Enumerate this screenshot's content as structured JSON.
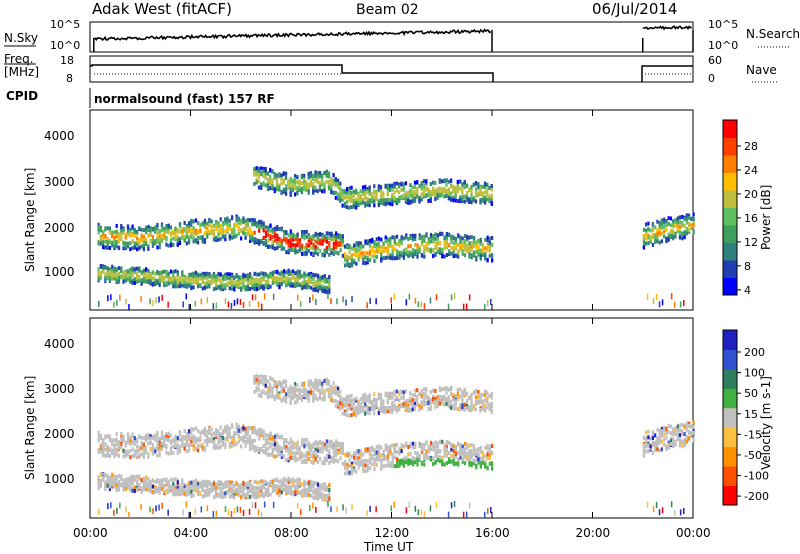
{
  "header": {
    "site_title": "Adak West (fitACF)",
    "beam": "Beam 02",
    "date": "06/Jul/2014"
  },
  "noise_panel": {
    "left_label": "N.Sky",
    "right_label": "N.Search",
    "left_ticks": [
      "10^5",
      "10^0"
    ],
    "right_ticks": [
      "10^5",
      "10^0"
    ]
  },
  "freq_panel": {
    "left_label_1": "Freq.",
    "left_label_2": "[MHz]",
    "right_label": "Nave",
    "left_ticks": [
      "18",
      "8"
    ],
    "right_ticks": [
      "60",
      "0"
    ]
  },
  "cpid": {
    "label": "CPID",
    "program": "normalsound (fast) 157 RF"
  },
  "power_panel": {
    "ylabel": "Slant Range [km]",
    "yticks": [
      "4000",
      "3000",
      "2000",
      "1000"
    ],
    "colorbar_label": "Power [dB]",
    "colorbar_ticks": [
      "28",
      "24",
      "20",
      "16",
      "12",
      "8",
      "4"
    ],
    "colors": [
      "#0000ff",
      "#1f3fb0",
      "#2f7f7f",
      "#3f9f5f",
      "#5fbf5f",
      "#bfbf3f",
      "#ffbf00",
      "#ff7f00",
      "#ff3f00",
      "#ff0000"
    ]
  },
  "velocity_panel": {
    "ylabel": "Slant Range [km]",
    "yticks": [
      "4000",
      "3000",
      "2000",
      "1000"
    ],
    "colorbar_label": "Velocity [m s-1]",
    "colorbar_ticks": [
      "200",
      "100",
      "50",
      "15",
      "-15",
      "-50",
      "-100",
      "-200"
    ],
    "colors": [
      "#2020c0",
      "#3050d0",
      "#2f7f5f",
      "#40b040",
      "#c0c0c0",
      "#ffbf40",
      "#ff9000",
      "#ff5000",
      "#ff0000"
    ]
  },
  "xaxis": {
    "label": "Time UT",
    "ticks": [
      "00:00",
      "04:00",
      "08:00",
      "12:00",
      "16:00",
      "20:00",
      "00:00"
    ]
  },
  "chart_data": {
    "type": "heatmap",
    "title": "Adak West (fitACF)",
    "xlabel": "Time UT",
    "ylabel": "Slant Range [km]",
    "x_range_hours": [
      0,
      24
    ],
    "y_range_km": [
      180,
      4700
    ],
    "data_gap_hours": [
      16.0,
      22.0
    ],
    "power_colorbar_db": [
      4,
      8,
      12,
      16,
      20,
      24,
      28
    ],
    "velocity_colorbar_ms": [
      200,
      100,
      50,
      15,
      -15,
      -50,
      -100,
      -200
    ],
    "echo_bands": [
      {
        "name": "main band",
        "points": [
          [
            0.3,
            1850
          ],
          [
            2,
            1800
          ],
          [
            4,
            1950
          ],
          [
            6,
            2050
          ],
          [
            8,
            1700
          ],
          [
            10,
            1650
          ],
          [
            10.1,
            1400
          ],
          [
            12,
            1600
          ],
          [
            14,
            1650
          ],
          [
            16,
            1550
          ]
        ]
      },
      {
        "name": "upper band",
        "points": [
          [
            6.5,
            3200
          ],
          [
            8,
            3000
          ],
          [
            9.5,
            3100
          ],
          [
            10.1,
            2700
          ],
          [
            12,
            2800
          ],
          [
            14,
            2900
          ],
          [
            16,
            2800
          ]
        ]
      },
      {
        "name": "lower band",
        "points": [
          [
            0.3,
            1000
          ],
          [
            2,
            950
          ],
          [
            4,
            850
          ],
          [
            6,
            800
          ],
          [
            8,
            900
          ],
          [
            9.5,
            750
          ]
        ]
      },
      {
        "name": "late band",
        "points": [
          [
            22,
            1850
          ],
          [
            23,
            2000
          ],
          [
            24,
            2100
          ]
        ]
      }
    ]
  }
}
